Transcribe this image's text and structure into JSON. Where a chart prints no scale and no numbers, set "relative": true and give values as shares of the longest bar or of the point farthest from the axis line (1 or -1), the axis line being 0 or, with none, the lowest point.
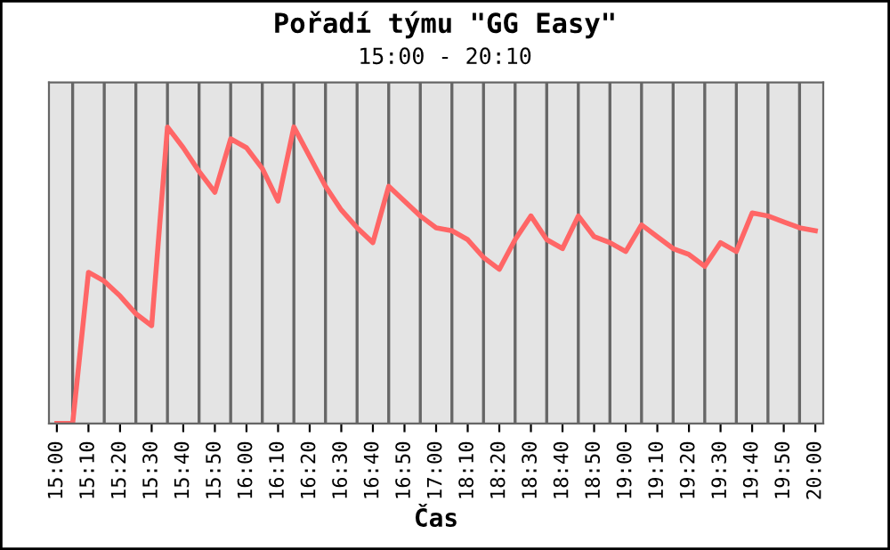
{
  "chart_data": {
    "type": "line",
    "title": "Pořadí týmu \"GG Easy\"",
    "subtitle": "15:00 - 20:10",
    "xlabel": "Čas",
    "relative": true,
    "grid": "x",
    "marker": "none",
    "line_style": "solid",
    "categories": [
      "15:00",
      null,
      "15:10",
      null,
      "15:20",
      null,
      "15:30",
      null,
      "15:40",
      null,
      "15:50",
      null,
      "16:00",
      null,
      "16:10",
      null,
      "16:20",
      null,
      "16:30",
      null,
      "16:40",
      null,
      "16:50",
      null,
      "17:00",
      null,
      "18:10",
      null,
      "18:20",
      null,
      "18:30",
      null,
      "18:40",
      null,
      "18:50",
      null,
      "19:00",
      null,
      "19:10",
      null,
      "19:20",
      null,
      "19:30",
      null,
      "19:40",
      null,
      "19:50",
      null,
      "20:00"
    ],
    "series": [
      {
        "color": "#ff6666",
        "values": [
          0,
          0,
          0.51,
          0.48,
          0.43,
          0.37,
          0.33,
          1,
          0.93,
          0.85,
          0.78,
          0.96,
          0.93,
          0.86,
          0.75,
          1,
          0.9,
          0.8,
          0.72,
          0.66,
          0.61,
          0.8,
          0.75,
          0.7,
          0.66,
          0.65,
          0.62,
          0.56,
          0.52,
          0.62,
          0.7,
          0.62,
          0.59,
          0.7,
          0.63,
          0.61,
          0.58,
          0.67,
          0.63,
          0.59,
          0.57,
          0.53,
          0.61,
          0.58,
          0.71,
          0.7,
          0.68,
          0.66,
          0.65
        ]
      }
    ]
  }
}
